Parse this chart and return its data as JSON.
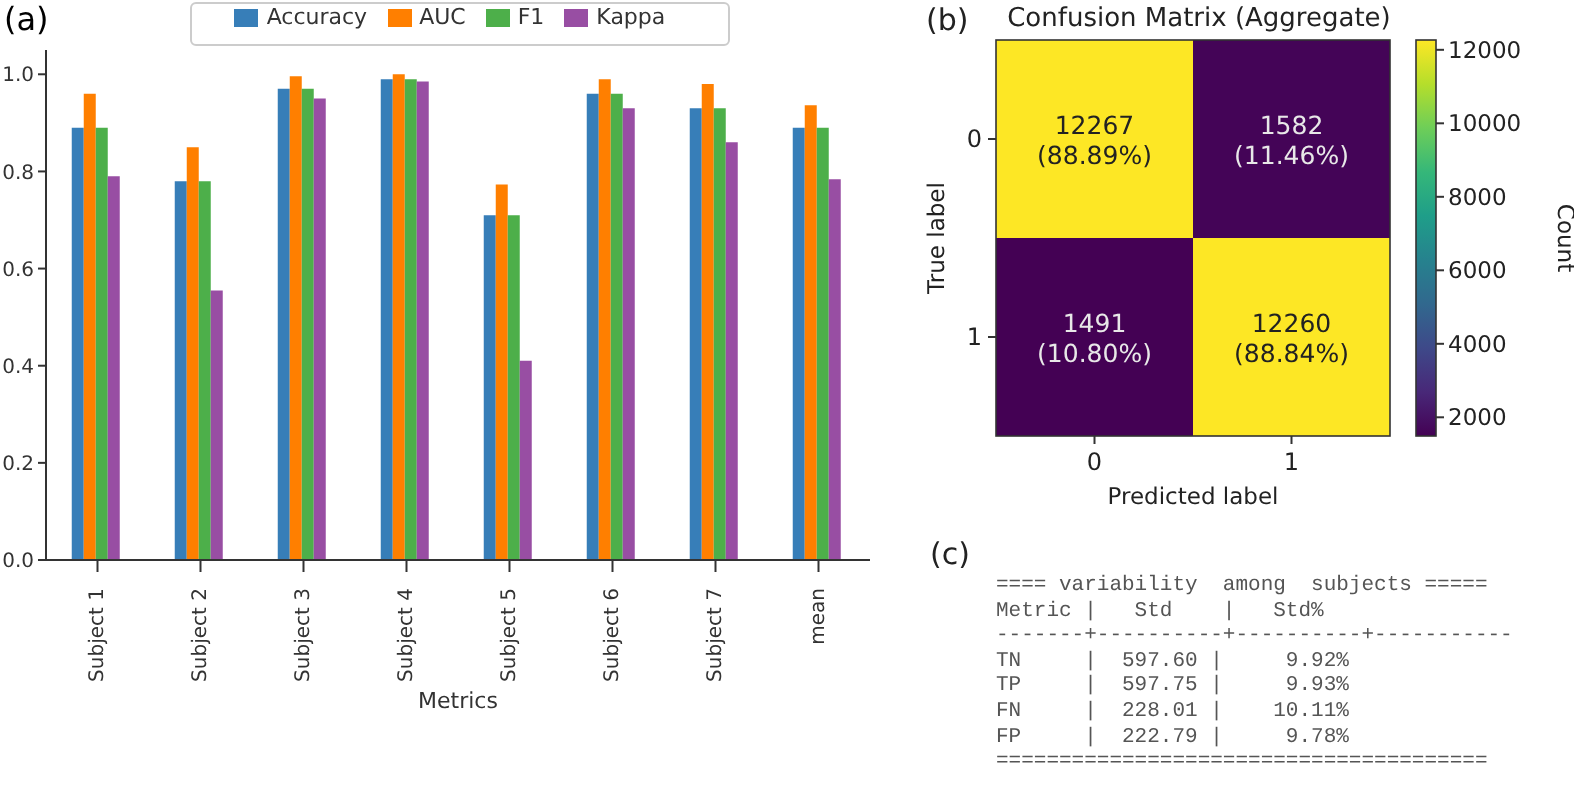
{
  "chart_data": [
    {
      "type": "bar",
      "annotations": [
        "(a)"
      ],
      "xlabel": "Metrics",
      "categories": [
        "Subject 1",
        "Subject 2",
        "Subject 3",
        "Subject 4",
        "Subject 5",
        "Subject 6",
        "Subject 7",
        "mean"
      ],
      "series": [
        {
          "name": "Accuracy",
          "color": "#377eb8",
          "values": [
            0.89,
            0.78,
            0.97,
            0.99,
            0.71,
            0.96,
            0.93,
            0.89
          ]
        },
        {
          "name": "AUC",
          "color": "#ff7f00",
          "values": [
            0.96,
            0.85,
            0.996,
            1.0,
            0.773,
            0.99,
            0.98,
            0.936
          ]
        },
        {
          "name": "F1",
          "color": "#4daf4a",
          "values": [
            0.89,
            0.78,
            0.97,
            0.99,
            0.71,
            0.96,
            0.93,
            0.89
          ]
        },
        {
          "name": "Kappa",
          "color": "#984ea3",
          "values": [
            0.79,
            0.555,
            0.95,
            0.985,
            0.41,
            0.93,
            0.86,
            0.784
          ]
        }
      ],
      "ylim": [
        0,
        1.05
      ],
      "yticks": [
        {
          "value": 0,
          "label": "0.0"
        },
        {
          "value": 0.2,
          "label": "0.2"
        },
        {
          "value": 0.4,
          "label": "0.4"
        },
        {
          "value": 0.6,
          "label": "0.6"
        },
        {
          "value": 0.8,
          "label": "0.8"
        },
        {
          "value": 1,
          "label": "1.0"
        }
      ],
      "legend": "top",
      "grid": false
    },
    {
      "type": "heatmap",
      "title": "Confusion Matrix (Aggregate)",
      "annotations": [
        "(b)"
      ],
      "xlabel": "Predicted label",
      "ylabel": "True label",
      "clabel": "Count",
      "categories": [
        "0",
        "1"
      ],
      "y_categories": [
        "0",
        "1"
      ],
      "cells": [
        [
          12267,
          1582
        ],
        [
          1491,
          12260
        ]
      ],
      "cell_labels": [
        [
          "12267\n(88.89%)",
          "1582\n(11.46%)"
        ],
        [
          "1491\n(10.80%)",
          "12260\n(88.84%)"
        ]
      ],
      "clim": [
        1491,
        12267
      ],
      "cticks": [
        2000,
        4000,
        6000,
        8000,
        10000,
        12000
      ]
    },
    {
      "type": "other",
      "annotations": [
        "(c)",
        "==== variability  among  subjects =====",
        "Metric |   Std    |   Std%",
        "-------+----------+----------+-----------",
        "TN     |  597.60 |     9.92%",
        "TP     |  597.75 |     9.93%",
        "FN     |  228.01 |    10.11%",
        "FP     |  222.79 |     9.78%",
        "======================================="
      ]
    }
  ]
}
